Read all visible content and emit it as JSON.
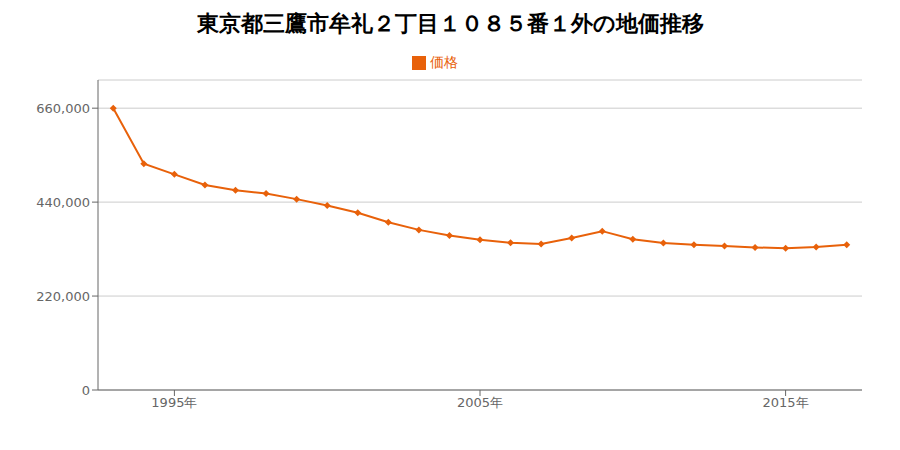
{
  "chart_data": {
    "type": "line",
    "title": "東京都三鷹市牟礼２丁目１０８５番１外の地価推移",
    "x": [
      1993,
      1994,
      1995,
      1996,
      1997,
      1998,
      1999,
      2000,
      2001,
      2002,
      2003,
      2004,
      2005,
      2006,
      2007,
      2008,
      2009,
      2010,
      2011,
      2012,
      2013,
      2014,
      2015,
      2016,
      2017
    ],
    "series": [
      {
        "name": "価格",
        "color": "#E8610A",
        "marker": "diamond",
        "values": [
          660000,
          530000,
          505000,
          480000,
          468000,
          460000,
          447000,
          432000,
          415000,
          393000,
          375000,
          362000,
          352000,
          345000,
          342000,
          356000,
          372000,
          353000,
          344000,
          340000,
          337000,
          334000,
          332000,
          335000,
          340000
        ]
      }
    ],
    "xlim": [
      1992.5,
      2017.5
    ],
    "xticks": [
      {
        "value": 1995,
        "label": "1995年"
      },
      {
        "value": 2005,
        "label": "2005年"
      },
      {
        "value": 2015,
        "label": "2015年"
      }
    ],
    "ylim": [
      0,
      726000
    ],
    "yticks": [
      0,
      {
        "value": 220000,
        "label": "220,000"
      },
      {
        "value": 440000,
        "label": "440,000"
      },
      {
        "value": 660000,
        "label": "660,000"
      }
    ],
    "grid": "y",
    "legend": "top"
  }
}
